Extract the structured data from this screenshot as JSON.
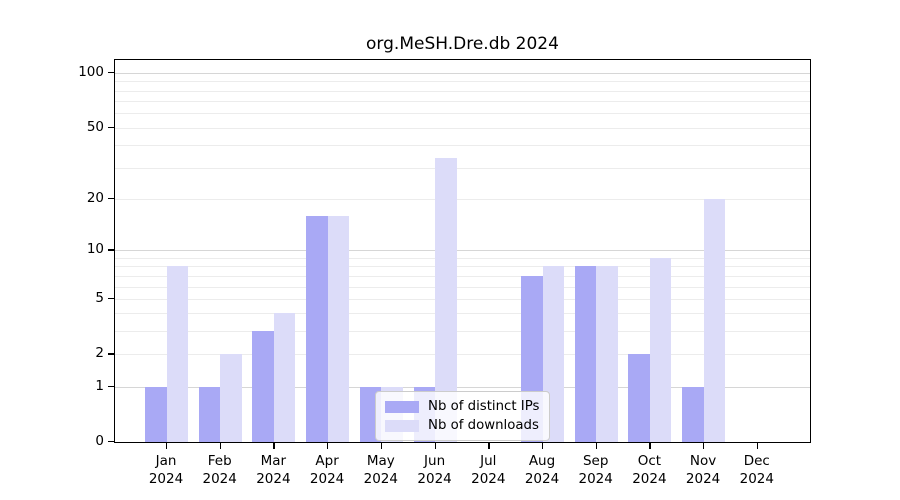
{
  "chart_data": {
    "type": "bar",
    "title": "org.MeSH.Dre.db 2024",
    "categories": [
      "Jan",
      "Feb",
      "Mar",
      "Apr",
      "May",
      "Jun",
      "Jul",
      "Aug",
      "Sep",
      "Oct",
      "Nov",
      "Dec"
    ],
    "year": "2024",
    "series": [
      {
        "name": "Nb of distinct IPs",
        "color": "#a9a9f5",
        "values": [
          1,
          1,
          3,
          16,
          1,
          1,
          0,
          7,
          8,
          2,
          1,
          0
        ]
      },
      {
        "name": "Nb of downloads",
        "color": "#dcdcf9",
        "values": [
          8,
          2,
          4,
          16,
          1,
          34,
          0,
          8,
          8,
          9,
          20,
          0
        ]
      }
    ],
    "yticks": [
      0,
      1,
      2,
      5,
      10,
      20,
      50,
      100
    ],
    "gridlines": {
      "minor": [
        2,
        3,
        4,
        5,
        6,
        7,
        8,
        9,
        20,
        30,
        40,
        50,
        60,
        70,
        80,
        90
      ],
      "decade": [
        1,
        10,
        100
      ]
    },
    "scale": "log10(1+y)",
    "ylim": [
      0,
      117
    ],
    "grid": "horizontal",
    "legend_position": "lower-center-inside"
  },
  "colors": {
    "spine": "#000000",
    "grid_minor": "#ececec",
    "grid_decade": "#d6d6d6",
    "legend_border": "#cccccc"
  }
}
